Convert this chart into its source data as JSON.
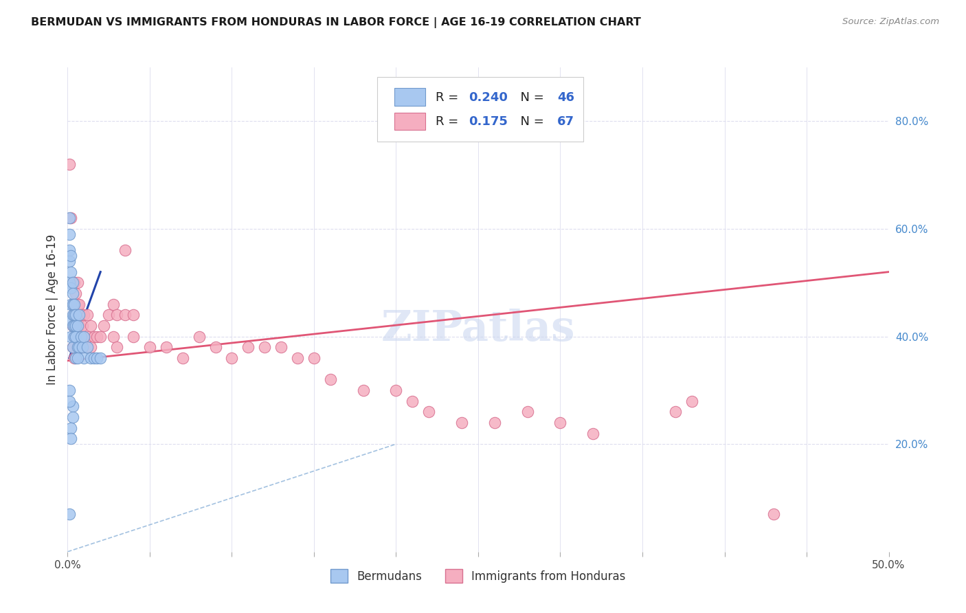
{
  "title": "BERMUDAN VS IMMIGRANTS FROM HONDURAS IN LABOR FORCE | AGE 16-19 CORRELATION CHART",
  "source": "Source: ZipAtlas.com",
  "ylabel": "In Labor Force | Age 16-19",
  "xlim": [
    0.0,
    0.5
  ],
  "ylim": [
    0.0,
    0.9
  ],
  "blue_color": "#a8c8f0",
  "pink_color": "#f5aec0",
  "blue_edge": "#7099cc",
  "pink_edge": "#d87090",
  "blue_trend_color": "#2244aa",
  "pink_trend_color": "#e05575",
  "ref_line_color": "#99bbdd",
  "legend_label1": "Bermudans",
  "legend_label2": "Immigrants from Honduras",
  "watermark": "ZIPatlas",
  "watermark_color": "#ccd8f0",
  "blue_scatter_x": [
    0.001,
    0.001,
    0.001,
    0.001,
    0.001,
    0.002,
    0.002,
    0.002,
    0.002,
    0.002,
    0.002,
    0.003,
    0.003,
    0.003,
    0.003,
    0.003,
    0.003,
    0.004,
    0.004,
    0.004,
    0.004,
    0.005,
    0.005,
    0.005,
    0.006,
    0.006,
    0.007,
    0.007,
    0.008,
    0.009,
    0.01,
    0.01,
    0.012,
    0.014,
    0.016,
    0.018,
    0.02,
    0.003,
    0.003,
    0.002,
    0.002,
    0.001,
    0.001,
    0.001,
    0.005,
    0.006
  ],
  "blue_scatter_y": [
    0.62,
    0.59,
    0.56,
    0.54,
    0.5,
    0.55,
    0.52,
    0.49,
    0.46,
    0.43,
    0.4,
    0.5,
    0.48,
    0.46,
    0.44,
    0.42,
    0.38,
    0.46,
    0.44,
    0.42,
    0.4,
    0.44,
    0.42,
    0.4,
    0.42,
    0.38,
    0.44,
    0.38,
    0.4,
    0.38,
    0.4,
    0.36,
    0.38,
    0.36,
    0.36,
    0.36,
    0.36,
    0.27,
    0.25,
    0.23,
    0.21,
    0.07,
    0.3,
    0.28,
    0.36,
    0.36
  ],
  "pink_scatter_x": [
    0.001,
    0.002,
    0.003,
    0.003,
    0.003,
    0.003,
    0.004,
    0.004,
    0.004,
    0.004,
    0.004,
    0.005,
    0.005,
    0.005,
    0.006,
    0.006,
    0.006,
    0.007,
    0.007,
    0.007,
    0.008,
    0.008,
    0.009,
    0.009,
    0.01,
    0.01,
    0.012,
    0.012,
    0.014,
    0.014,
    0.016,
    0.018,
    0.02,
    0.022,
    0.025,
    0.028,
    0.028,
    0.03,
    0.03,
    0.035,
    0.035,
    0.04,
    0.04,
    0.05,
    0.06,
    0.07,
    0.08,
    0.09,
    0.1,
    0.11,
    0.12,
    0.13,
    0.14,
    0.15,
    0.16,
    0.18,
    0.2,
    0.21,
    0.22,
    0.24,
    0.26,
    0.28,
    0.3,
    0.32,
    0.37,
    0.38,
    0.43
  ],
  "pink_scatter_y": [
    0.72,
    0.62,
    0.5,
    0.46,
    0.42,
    0.38,
    0.5,
    0.46,
    0.44,
    0.4,
    0.36,
    0.48,
    0.44,
    0.4,
    0.5,
    0.46,
    0.42,
    0.46,
    0.42,
    0.38,
    0.44,
    0.4,
    0.42,
    0.38,
    0.44,
    0.4,
    0.44,
    0.4,
    0.42,
    0.38,
    0.4,
    0.4,
    0.4,
    0.42,
    0.44,
    0.46,
    0.4,
    0.44,
    0.38,
    0.56,
    0.44,
    0.44,
    0.4,
    0.38,
    0.38,
    0.36,
    0.4,
    0.38,
    0.36,
    0.38,
    0.38,
    0.38,
    0.36,
    0.36,
    0.32,
    0.3,
    0.3,
    0.28,
    0.26,
    0.24,
    0.24,
    0.26,
    0.24,
    0.22,
    0.26,
    0.28,
    0.07
  ],
  "blue_trend_x": [
    0.001,
    0.02
  ],
  "blue_trend_y": [
    0.36,
    0.52
  ],
  "pink_trend_x": [
    0.0,
    0.5
  ],
  "pink_trend_y": [
    0.355,
    0.52
  ],
  "ref_line_x": [
    0.0,
    0.2
  ],
  "ref_line_y": [
    0.0,
    0.2
  ],
  "xtick_positions": [
    0.0,
    0.05,
    0.1,
    0.15,
    0.2,
    0.25,
    0.3,
    0.35,
    0.4,
    0.45,
    0.5
  ],
  "ytick_right_positions": [
    0.2,
    0.4,
    0.6,
    0.8
  ],
  "ytick_right_labels": [
    "20.0%",
    "40.0%",
    "60.0%",
    "80.0%"
  ]
}
